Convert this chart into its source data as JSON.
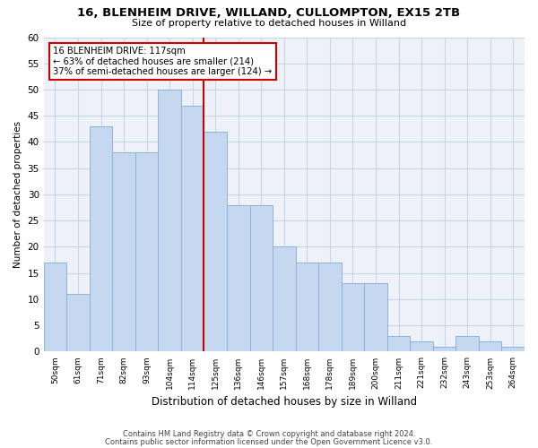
{
  "title_line1": "16, BLENHEIM DRIVE, WILLAND, CULLOMPTON, EX15 2TB",
  "title_line2": "Size of property relative to detached houses in Willand",
  "xlabel": "Distribution of detached houses by size in Willand",
  "ylabel": "Number of detached properties",
  "categories": [
    "50sqm",
    "61sqm",
    "71sqm",
    "82sqm",
    "93sqm",
    "104sqm",
    "114sqm",
    "125sqm",
    "136sqm",
    "146sqm",
    "157sqm",
    "168sqm",
    "178sqm",
    "189sqm",
    "200sqm",
    "211sqm",
    "221sqm",
    "232sqm",
    "243sqm",
    "253sqm",
    "264sqm"
  ],
  "values": [
    17,
    11,
    43,
    38,
    38,
    50,
    47,
    42,
    28,
    28,
    20,
    17,
    17,
    13,
    13,
    3,
    2,
    1,
    3,
    2,
    1
  ],
  "bar_color": "#c5d8f0",
  "bar_edge_color": "#8ab4d8",
  "grid_color": "#c8d4e8",
  "bg_color": "#eef2f8",
  "vline_x_index": 6,
  "vline_color": "#cc0000",
  "annotation_text": "16 BLENHEIM DRIVE: 117sqm\n← 63% of detached houses are smaller (214)\n37% of semi-detached houses are larger (124) →",
  "annotation_box_color": "#cc0000",
  "footnote1": "Contains HM Land Registry data © Crown copyright and database right 2024.",
  "footnote2": "Contains public sector information licensed under the Open Government Licence v3.0.",
  "ylim": [
    0,
    60
  ],
  "yticks": [
    0,
    5,
    10,
    15,
    20,
    25,
    30,
    35,
    40,
    45,
    50,
    55,
    60
  ]
}
